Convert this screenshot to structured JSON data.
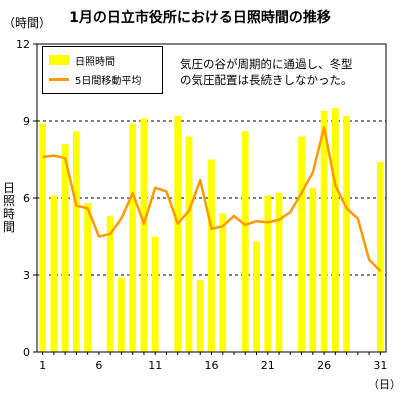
{
  "chart_data": {
    "type": "bar",
    "title": "1月の日立市役所における日照時間の推移",
    "y_unit": "（時間）",
    "ylabel": "日照時間",
    "x_unit": "（日）",
    "ylim": [
      0,
      12
    ],
    "yticks": [
      0,
      3,
      6,
      9,
      12
    ],
    "x": [
      1,
      2,
      3,
      4,
      5,
      6,
      7,
      8,
      9,
      10,
      11,
      12,
      13,
      14,
      15,
      16,
      17,
      18,
      19,
      20,
      21,
      22,
      23,
      24,
      25,
      26,
      27,
      28,
      29,
      30,
      31
    ],
    "xtick_labels": [
      "1",
      "6",
      "11",
      "16",
      "21",
      "26",
      "31"
    ],
    "xtick_days": [
      1,
      6,
      11,
      16,
      21,
      26,
      31
    ],
    "grid": "horizontal dashed at 3, 6, 9",
    "legend_position": "top-left",
    "series": [
      {
        "name": "日照時間",
        "type": "bar",
        "color": "#ffff00",
        "values": [
          8.9,
          6.1,
          8.1,
          8.6,
          5.8,
          0,
          5.3,
          2.9,
          8.9,
          9.1,
          4.5,
          0,
          9.2,
          8.4,
          2.8,
          7.5,
          5.4,
          0,
          8.6,
          4.3,
          6.1,
          6.2,
          0,
          8.4,
          6.4,
          9.4,
          9.5,
          9.2,
          0,
          0,
          7.4
        ]
      },
      {
        "name": "5日間移動平均",
        "type": "line",
        "color": "#ff9900",
        "values": [
          7.6,
          7.65,
          7.55,
          5.7,
          5.6,
          4.5,
          4.6,
          5.2,
          6.2,
          5.0,
          6.4,
          6.25,
          5.0,
          5.5,
          6.7,
          4.8,
          4.9,
          5.3,
          4.95,
          5.1,
          5.05,
          5.15,
          5.45,
          6.2,
          7.0,
          8.75,
          6.5,
          5.6,
          5.2,
          3.6,
          3.15
        ]
      }
    ]
  },
  "annotation": {
    "line1": "気圧の谷が周期的に通過し、冬型",
    "line2": "の気圧配置は長続きしなかった。"
  },
  "colors": {
    "bar": "#ffff00",
    "line": "#ff9900",
    "grid": "#000000"
  }
}
